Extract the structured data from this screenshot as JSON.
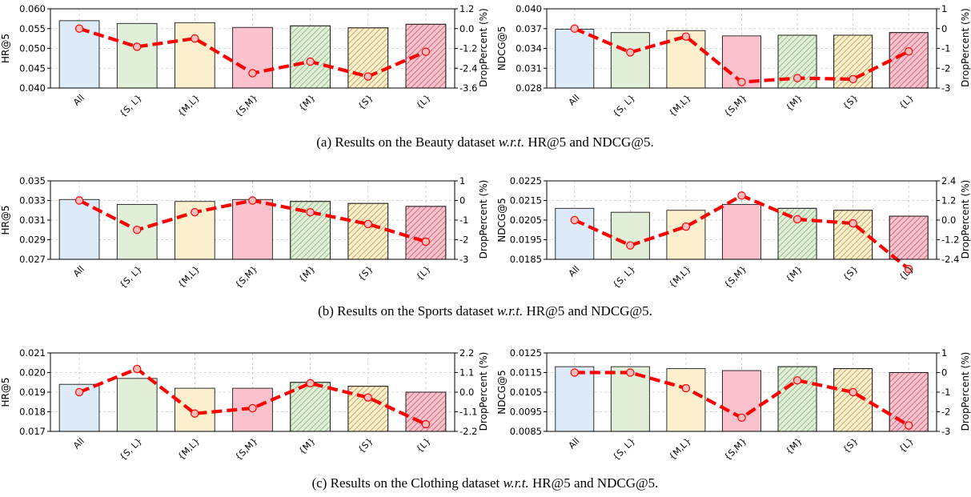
{
  "chart_data": [
    {
      "type": "bar",
      "categories": [
        "All",
        "{S, L}",
        "{M,L}",
        "{S,M}",
        "{M}",
        "{S}",
        "{L}"
      ],
      "ylabel": "HR@5",
      "y2label": "DropPercent (%)",
      "ylim": [
        0.04,
        0.06
      ],
      "yticks": [
        "0.040",
        "0.045",
        "0.050",
        "0.055",
        "0.060"
      ],
      "y2lim": [
        -3.6,
        1.2
      ],
      "y2ticks": [
        "-3.6",
        "-2.4",
        "-1.2",
        "0.0",
        "1.2"
      ],
      "series": [
        {
          "values": [
            0.057,
            0.0563,
            0.0565,
            0.0553,
            0.0557,
            0.0552,
            0.0561
          ]
        },
        {
          "axis": "right",
          "values": [
            0.0,
            -1.1,
            -0.6,
            -2.7,
            -2.0,
            -2.9,
            -1.4
          ]
        }
      ],
      "grid": true
    },
    {
      "type": "bar",
      "categories": [
        "All",
        "{S, L}",
        "{M,L}",
        "{S,M}",
        "{M}",
        "{S}",
        "{L}"
      ],
      "ylabel": "NDCG@5",
      "y2label": "DropPercent (%)",
      "ylim": [
        0.028,
        0.04
      ],
      "yticks": [
        "0.028",
        "0.031",
        "0.034",
        "0.037",
        "0.040"
      ],
      "y2lim": [
        -3,
        1
      ],
      "y2ticks": [
        "-3",
        "-2",
        "-1",
        "0",
        "1"
      ],
      "series": [
        {
          "values": [
            0.0369,
            0.0364,
            0.0367,
            0.0359,
            0.036,
            0.036,
            0.0364
          ]
        },
        {
          "axis": "right",
          "values": [
            0.0,
            -1.2,
            -0.4,
            -2.7,
            -2.5,
            -2.55,
            -1.15
          ]
        }
      ],
      "grid": true
    },
    {
      "type": "bar",
      "categories": [
        "All",
        "{S, L}",
        "{M,L}",
        "{S,M}",
        "{M}",
        "{S}",
        "{L}"
      ],
      "ylabel": "HR@5",
      "y2label": "DropPercent (%)",
      "ylim": [
        0.027,
        0.035
      ],
      "yticks": [
        "0.027",
        "0.029",
        "0.031",
        "0.033",
        "0.035"
      ],
      "y2lim": [
        -3,
        1
      ],
      "y2ticks": [
        "-3",
        "-2",
        "-1",
        "0",
        "1"
      ],
      "series": [
        {
          "values": [
            0.0331,
            0.0326,
            0.0329,
            0.0331,
            0.0329,
            0.0327,
            0.0324
          ]
        },
        {
          "axis": "right",
          "values": [
            0.0,
            -1.5,
            -0.6,
            0.0,
            -0.6,
            -1.2,
            -2.1
          ]
        }
      ],
      "grid": true
    },
    {
      "type": "bar",
      "categories": [
        "All",
        "{S, L}",
        "{M,L}",
        "{S,M}",
        "{M}",
        "{S}",
        "{L}"
      ],
      "ylabel": "NDCG@5",
      "y2label": "DropPercent (%)",
      "ylim": [
        0.0185,
        0.0225
      ],
      "yticks": [
        "0.0185",
        "0.0195",
        "0.0205",
        "0.0215",
        "0.0225"
      ],
      "y2lim": [
        -2.4,
        2.4
      ],
      "y2ticks": [
        "-2.4",
        "-1.2",
        "0.0",
        "1.2",
        "2.4"
      ],
      "series": [
        {
          "values": [
            0.0211,
            0.0209,
            0.021,
            0.0213,
            0.0211,
            0.021,
            0.0207
          ]
        },
        {
          "axis": "right",
          "values": [
            0.0,
            -1.55,
            -0.4,
            1.5,
            0.05,
            -0.2,
            -3.0
          ]
        }
      ],
      "grid": true
    },
    {
      "type": "bar",
      "categories": [
        "All",
        "{S, L}",
        "{M,L}",
        "{S,M}",
        "{M}",
        "{S}",
        "{L}"
      ],
      "ylabel": "HR@5",
      "y2label": "DropPercent (%)",
      "ylim": [
        0.017,
        0.021
      ],
      "yticks": [
        "0.017",
        "0.018",
        "0.019",
        "0.020",
        "0.021"
      ],
      "y2lim": [
        -2.2,
        2.2
      ],
      "y2ticks": [
        "-2.2",
        "-1.1",
        "0.0",
        "1.1",
        "2.2"
      ],
      "series": [
        {
          "values": [
            0.0194,
            0.0197,
            0.0192,
            0.0192,
            0.0195,
            0.0193,
            0.019
          ]
        },
        {
          "axis": "right",
          "values": [
            0.0,
            1.3,
            -1.2,
            -0.9,
            0.5,
            -0.3,
            -1.8
          ]
        }
      ],
      "grid": true
    },
    {
      "type": "bar",
      "categories": [
        "All",
        "{S, L}",
        "{M,L}",
        "{S,M}",
        "{M}",
        "{S}",
        "{L}"
      ],
      "ylabel": "NDCG@5",
      "y2label": "DropPercent (%)",
      "ylim": [
        0.0085,
        0.0125
      ],
      "yticks": [
        "0.0085",
        "0.0095",
        "0.0105",
        "0.0115",
        "0.0125"
      ],
      "y2lim": [
        -3,
        1
      ],
      "y2ticks": [
        "-3",
        "-2",
        "-1",
        "0",
        "1"
      ],
      "series": [
        {
          "values": [
            0.0118,
            0.0118,
            0.0117,
            0.0116,
            0.0118,
            0.0117,
            0.0115
          ]
        },
        {
          "axis": "right",
          "values": [
            0.0,
            0.0,
            -0.8,
            -2.3,
            -0.4,
            -1.0,
            -2.7
          ]
        }
      ],
      "grid": true
    }
  ],
  "captions": [
    {
      "pre": "(a)  Results on the Beauty dataset ",
      "em": "w.r.t.",
      "post": " HR@5 and NDCG@5."
    },
    {
      "pre": "(b)  Results on the Sports dataset ",
      "em": "w.r.t.",
      "post": " HR@5 and NDCG@5."
    },
    {
      "pre": "(c)  Results on the Clothing dataset ",
      "em": "w.r.t.",
      "post": " HR@5 and NDCG@5."
    }
  ],
  "style": {
    "bar_fill": [
      "#dcebf7",
      "#e1efd8",
      "#fcefcd",
      "#fac2cc",
      "#e1efd8",
      "#fcefcd",
      "#fac2cc"
    ],
    "hatch_color": [
      "",
      "",
      "",
      "",
      "#9bbf8a",
      "#c9a866",
      "#cf6f83"
    ],
    "line_color": "#ff0000",
    "marker_fill": "#fbbcbc"
  }
}
